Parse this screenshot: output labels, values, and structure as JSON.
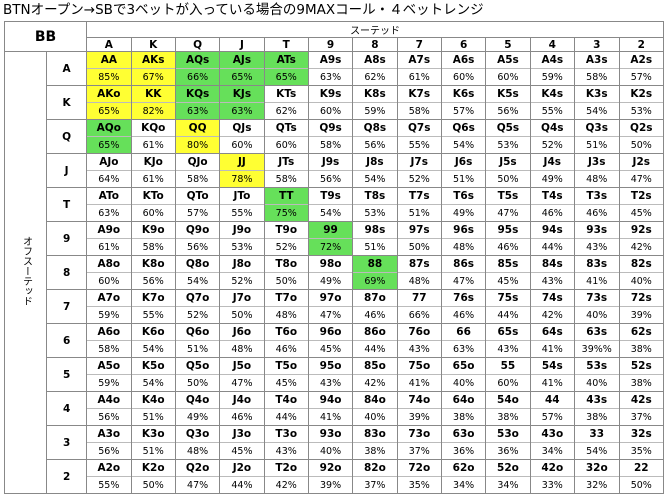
{
  "title": "BTNオープン→SBで3ベットが入っている場合の9MAXコール・４ベットレンジ",
  "corner_label": "BB",
  "suited_label": "スーテッド",
  "offsuit_label": "オフスーテッド",
  "ranks": [
    "A",
    "K",
    "Q",
    "J",
    "T",
    "9",
    "8",
    "7",
    "6",
    "5",
    "4",
    "3",
    "2"
  ],
  "colors": {
    "4bet": "#ffff33",
    "call": "#66e05a"
  },
  "rows": [
    {
      "rank": "A",
      "hands": [
        "AA",
        "AKs",
        "AQs",
        "AJs",
        "ATs",
        "A9s",
        "A8s",
        "A7s",
        "A6s",
        "A5s",
        "A4s",
        "A3s",
        "A2s"
      ],
      "pcts": [
        "85%",
        "67%",
        "66%",
        "65%",
        "65%",
        "63%",
        "62%",
        "61%",
        "60%",
        "60%",
        "59%",
        "58%",
        "57%"
      ],
      "colors": [
        "y",
        "y",
        "g",
        "g",
        "g",
        "",
        "",
        "",
        "",
        "",
        "",
        "",
        ""
      ]
    },
    {
      "rank": "K",
      "hands": [
        "AKo",
        "KK",
        "KQs",
        "KJs",
        "KTs",
        "K9s",
        "K8s",
        "K7s",
        "K6s",
        "K5s",
        "K4s",
        "K3s",
        "K2s"
      ],
      "pcts": [
        "65%",
        "82%",
        "63%",
        "63%",
        "62%",
        "60%",
        "59%",
        "58%",
        "57%",
        "56%",
        "55%",
        "54%",
        "53%"
      ],
      "colors": [
        "y",
        "y",
        "g",
        "g",
        "",
        "",
        "",
        "",
        "",
        "",
        "",
        "",
        ""
      ]
    },
    {
      "rank": "Q",
      "hands": [
        "AQo",
        "KQo",
        "QQ",
        "QJs",
        "QTs",
        "Q9s",
        "Q8s",
        "Q7s",
        "Q6s",
        "Q5s",
        "Q4s",
        "Q3s",
        "Q2s"
      ],
      "pcts": [
        "65%",
        "61%",
        "80%",
        "60%",
        "60%",
        "58%",
        "56%",
        "55%",
        "54%",
        "53%",
        "52%",
        "51%",
        "50%"
      ],
      "colors": [
        "g",
        "",
        "y",
        "",
        "",
        "",
        "",
        "",
        "",
        "",
        "",
        "",
        ""
      ]
    },
    {
      "rank": "J",
      "hands": [
        "AJo",
        "KJo",
        "QJo",
        "JJ",
        "JTs",
        "J9s",
        "J8s",
        "J7s",
        "J6s",
        "J5s",
        "J4s",
        "J3s",
        "J2s"
      ],
      "pcts": [
        "64%",
        "61%",
        "58%",
        "78%",
        "58%",
        "56%",
        "54%",
        "52%",
        "51%",
        "50%",
        "49%",
        "48%",
        "47%"
      ],
      "colors": [
        "",
        "",
        "",
        "y",
        "",
        "",
        "",
        "",
        "",
        "",
        "",
        "",
        ""
      ]
    },
    {
      "rank": "T",
      "hands": [
        "ATo",
        "KTo",
        "QTo",
        "JTo",
        "TT",
        "T9s",
        "T8s",
        "T7s",
        "T6s",
        "T5s",
        "T4s",
        "T3s",
        "T2s"
      ],
      "pcts": [
        "63%",
        "60%",
        "57%",
        "55%",
        "75%",
        "54%",
        "53%",
        "51%",
        "49%",
        "47%",
        "46%",
        "46%",
        "45%"
      ],
      "colors": [
        "",
        "",
        "",
        "",
        "g",
        "",
        "",
        "",
        "",
        "",
        "",
        "",
        ""
      ]
    },
    {
      "rank": "9",
      "hands": [
        "A9o",
        "K9o",
        "Q9o",
        "J9o",
        "T9o",
        "99",
        "98s",
        "97s",
        "96s",
        "95s",
        "94s",
        "93s",
        "92s"
      ],
      "pcts": [
        "61%",
        "58%",
        "56%",
        "53%",
        "52%",
        "72%",
        "51%",
        "50%",
        "48%",
        "46%",
        "44%",
        "43%",
        "42%"
      ],
      "colors": [
        "",
        "",
        "",
        "",
        "",
        "g",
        "",
        "",
        "",
        "",
        "",
        "",
        ""
      ]
    },
    {
      "rank": "8",
      "hands": [
        "A8o",
        "K8o",
        "Q8o",
        "J8o",
        "T8o",
        "98o",
        "88",
        "87s",
        "86s",
        "85s",
        "84s",
        "83s",
        "82s"
      ],
      "pcts": [
        "60%",
        "56%",
        "54%",
        "52%",
        "50%",
        "49%",
        "69%",
        "48%",
        "47%",
        "45%",
        "43%",
        "41%",
        "40%"
      ],
      "colors": [
        "",
        "",
        "",
        "",
        "",
        "",
        "g",
        "",
        "",
        "",
        "",
        "",
        ""
      ]
    },
    {
      "rank": "7",
      "hands": [
        "A7o",
        "K7o",
        "Q7o",
        "J7o",
        "T7o",
        "97o",
        "87o",
        "77",
        "76s",
        "75s",
        "74s",
        "73s",
        "72s"
      ],
      "pcts": [
        "59%",
        "55%",
        "52%",
        "50%",
        "48%",
        "47%",
        "46%",
        "66%",
        "46%",
        "44%",
        "42%",
        "40%",
        "39%"
      ],
      "colors": [
        "",
        "",
        "",
        "",
        "",
        "",
        "",
        "",
        "",
        "",
        "",
        "",
        ""
      ]
    },
    {
      "rank": "6",
      "hands": [
        "A6o",
        "K6o",
        "Q6o",
        "J6o",
        "T6o",
        "96o",
        "86o",
        "76o",
        "66",
        "65s",
        "64s",
        "63s",
        "62s"
      ],
      "pcts": [
        "58%",
        "54%",
        "51%",
        "48%",
        "46%",
        "45%",
        "44%",
        "43%",
        "63%",
        "43%",
        "41%",
        "39%%",
        "38%"
      ],
      "colors": [
        "",
        "",
        "",
        "",
        "",
        "",
        "",
        "",
        "",
        "",
        "",
        "",
        ""
      ]
    },
    {
      "rank": "5",
      "hands": [
        "A5o",
        "K5o",
        "Q5o",
        "J5o",
        "T5o",
        "95o",
        "85o",
        "75o",
        "65o",
        "55",
        "54s",
        "53s",
        "52s"
      ],
      "pcts": [
        "59%",
        "54%",
        "50%",
        "47%",
        "45%",
        "43%",
        "42%",
        "41%",
        "40%",
        "60%",
        "41%",
        "40%",
        "38%"
      ],
      "colors": [
        "",
        "",
        "",
        "",
        "",
        "",
        "",
        "",
        "",
        "",
        "",
        "",
        ""
      ]
    },
    {
      "rank": "4",
      "hands": [
        "A4o",
        "K4o",
        "Q4o",
        "J4o",
        "T4o",
        "94o",
        "84o",
        "74o",
        "64o",
        "54o",
        "44",
        "43s",
        "42s"
      ],
      "pcts": [
        "56%",
        "51%",
        "49%",
        "46%",
        "44%",
        "41%",
        "40%",
        "39%",
        "38%",
        "38%",
        "57%",
        "38%",
        "37%"
      ],
      "colors": [
        "",
        "",
        "",
        "",
        "",
        "",
        "",
        "",
        "",
        "",
        "",
        "",
        ""
      ]
    },
    {
      "rank": "3",
      "hands": [
        "A3o",
        "K3o",
        "Q3o",
        "J3o",
        "T3o",
        "93o",
        "83o",
        "73o",
        "63o",
        "53o",
        "43o",
        "33",
        "32s"
      ],
      "pcts": [
        "56%",
        "51%",
        "48%",
        "45%",
        "43%",
        "40%",
        "38%",
        "37%",
        "36%",
        "36%",
        "34%",
        "54%",
        "35%"
      ],
      "colors": [
        "",
        "",
        "",
        "",
        "",
        "",
        "",
        "",
        "",
        "",
        "",
        "",
        ""
      ]
    },
    {
      "rank": "2",
      "hands": [
        "A2o",
        "K2o",
        "Q2o",
        "J2o",
        "T2o",
        "92o",
        "82o",
        "72o",
        "62o",
        "52o",
        "42o",
        "32o",
        "22"
      ],
      "pcts": [
        "55%",
        "50%",
        "47%",
        "44%",
        "42%",
        "39%",
        "37%",
        "35%",
        "34%",
        "34%",
        "33%",
        "32%",
        "50%"
      ],
      "colors": [
        "",
        "",
        "",
        "",
        "",
        "",
        "",
        "",
        "",
        "",
        "",
        "",
        ""
      ]
    }
  ]
}
